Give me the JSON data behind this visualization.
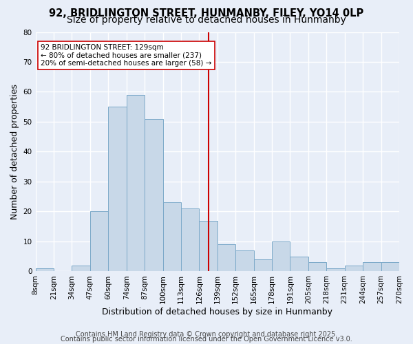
{
  "title1": "92, BRIDLINGTON STREET, HUNMANBY, FILEY, YO14 0LP",
  "title2": "Size of property relative to detached houses in Hunmanby",
  "xlabel": "Distribution of detached houses by size in Hunmanby",
  "ylabel": "Number of detached properties",
  "bar_labels": [
    "8sqm",
    "21sqm",
    "34sqm",
    "47sqm",
    "60sqm",
    "74sqm",
    "87sqm",
    "100sqm",
    "113sqm",
    "126sqm",
    "139sqm",
    "152sqm",
    "165sqm",
    "178sqm",
    "191sqm",
    "205sqm",
    "218sqm",
    "231sqm",
    "244sqm",
    "257sqm",
    "270sqm"
  ],
  "bar_heights": [
    1,
    0,
    2,
    20,
    55,
    59,
    51,
    23,
    21,
    17,
    9,
    7,
    4,
    10,
    5,
    3,
    1,
    2,
    3,
    3
  ],
  "bar_color": "#c8d8e8",
  "bar_edge_color": "#7aa8c8",
  "vline_color": "#cc0000",
  "vline_position": 9.5,
  "annotation_text": "92 BRIDLINGTON STREET: 129sqm\n← 80% of detached houses are smaller (237)\n20% of semi-detached houses are larger (58) →",
  "annotation_box_edge_color": "#cc0000",
  "background_color": "#e8eef8",
  "grid_color": "#ffffff",
  "ylim_max": 80,
  "yticks": [
    0,
    10,
    20,
    30,
    40,
    50,
    60,
    70,
    80
  ],
  "footer1": "Contains HM Land Registry data © Crown copyright and database right 2025.",
  "footer2": "Contains public sector information licensed under the Open Government Licence v3.0.",
  "title1_fontsize": 10.5,
  "title2_fontsize": 10,
  "axis_fontsize": 9,
  "tick_fontsize": 7.5,
  "footer_fontsize": 7
}
